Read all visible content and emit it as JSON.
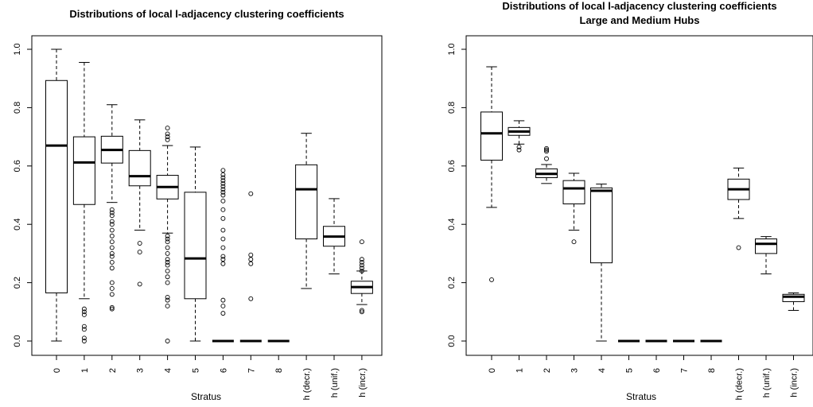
{
  "chart_data": [
    {
      "type": "boxplot",
      "title": "Distributions of local l-adjacency clustering coefficients",
      "subtitle": "",
      "xlabel": "Stratus",
      "ylabel": "",
      "ylim": [
        0,
        1
      ],
      "y_ticks": [
        "0.0",
        "0.2",
        "0.4",
        "0.6",
        "0.8",
        "1.0"
      ],
      "categories": [
        "0",
        "1",
        "2",
        "3",
        "4",
        "5",
        "6",
        "7",
        "8",
        "h (decr.)",
        "h (unif.)",
        "h (incr.)"
      ],
      "boxes": [
        {
          "whisker_low": 0.0,
          "q1": 0.165,
          "median": 0.67,
          "q3": 0.893,
          "whisker_high": 1.0,
          "outliers": []
        },
        {
          "whisker_low": 0.145,
          "q1": 0.468,
          "median": 0.612,
          "q3": 0.7,
          "whisker_high": 0.955,
          "outliers": [
            0.0,
            0.01,
            0.04,
            0.05,
            0.09,
            0.1,
            0.11
          ]
        },
        {
          "whisker_low": 0.475,
          "q1": 0.61,
          "median": 0.655,
          "q3": 0.702,
          "whisker_high": 0.81,
          "outliers": [
            0.11,
            0.115,
            0.16,
            0.18,
            0.2,
            0.25,
            0.27,
            0.29,
            0.3,
            0.32,
            0.34,
            0.36,
            0.38,
            0.4,
            0.41,
            0.43,
            0.44,
            0.45
          ]
        },
        {
          "whisker_low": 0.38,
          "q1": 0.532,
          "median": 0.565,
          "q3": 0.653,
          "whisker_high": 0.758,
          "outliers": [
            0.195,
            0.305,
            0.335
          ]
        },
        {
          "whisker_low": 0.37,
          "q1": 0.487,
          "median": 0.528,
          "q3": 0.568,
          "whisker_high": 0.67,
          "outliers": [
            0.0,
            0.12,
            0.14,
            0.15,
            0.2,
            0.22,
            0.24,
            0.26,
            0.27,
            0.28,
            0.3,
            0.32,
            0.34,
            0.35,
            0.36,
            0.69,
            0.7,
            0.71,
            0.73
          ]
        },
        {
          "whisker_low": 0.0,
          "q1": 0.145,
          "median": 0.283,
          "q3": 0.51,
          "whisker_high": 0.665,
          "outliers": []
        },
        {
          "whisker_low": 0.0,
          "q1": 0.0,
          "median": 0.0,
          "q3": 0.0,
          "whisker_high": 0.0,
          "outliers": [
            0.095,
            0.12,
            0.14,
            0.265,
            0.28,
            0.29,
            0.32,
            0.35,
            0.38,
            0.42,
            0.45,
            0.48,
            0.5,
            0.51,
            0.52,
            0.53,
            0.54,
            0.55,
            0.56,
            0.57,
            0.585
          ]
        },
        {
          "whisker_low": 0.0,
          "q1": 0.0,
          "median": 0.0,
          "q3": 0.0,
          "whisker_high": 0.0,
          "outliers": [
            0.145,
            0.265,
            0.28,
            0.295,
            0.505
          ]
        },
        {
          "whisker_low": 0.0,
          "q1": 0.0,
          "median": 0.0,
          "q3": 0.0,
          "whisker_high": 0.0,
          "outliers": []
        },
        {
          "whisker_low": 0.18,
          "q1": 0.35,
          "median": 0.52,
          "q3": 0.604,
          "whisker_high": 0.712,
          "outliers": []
        },
        {
          "whisker_low": 0.23,
          "q1": 0.325,
          "median": 0.358,
          "q3": 0.393,
          "whisker_high": 0.488,
          "outliers": []
        },
        {
          "whisker_low": 0.125,
          "q1": 0.163,
          "median": 0.185,
          "q3": 0.205,
          "whisker_high": 0.24,
          "outliers": [
            0.1,
            0.105,
            0.24,
            0.25,
            0.26,
            0.27,
            0.28,
            0.34
          ]
        }
      ]
    },
    {
      "type": "boxplot",
      "title": "Distributions of local l-adjacency clustering coefficients",
      "subtitle": "Large and Medium Hubs",
      "xlabel": "Stratus",
      "ylabel": "",
      "ylim": [
        0,
        1
      ],
      "y_ticks": [
        "0.0",
        "0.2",
        "0.4",
        "0.6",
        "0.8",
        "1.0"
      ],
      "categories": [
        "0",
        "1",
        "2",
        "3",
        "4",
        "5",
        "6",
        "7",
        "8",
        "h (decr.)",
        "h (unif.)",
        "h (incr.)"
      ],
      "boxes": [
        {
          "whisker_low": 0.458,
          "q1": 0.62,
          "median": 0.712,
          "q3": 0.785,
          "whisker_high": 0.94,
          "outliers": [
            0.21
          ]
        },
        {
          "whisker_low": 0.675,
          "q1": 0.705,
          "median": 0.718,
          "q3": 0.732,
          "whisker_high": 0.755,
          "outliers": [
            0.655,
            0.665
          ]
        },
        {
          "whisker_low": 0.54,
          "q1": 0.56,
          "median": 0.573,
          "q3": 0.59,
          "whisker_high": 0.605,
          "outliers": [
            0.625,
            0.65,
            0.655,
            0.66
          ]
        },
        {
          "whisker_low": 0.38,
          "q1": 0.47,
          "median": 0.523,
          "q3": 0.55,
          "whisker_high": 0.575,
          "outliers": [
            0.34
          ]
        },
        {
          "whisker_low": 0.0,
          "q1": 0.268,
          "median": 0.515,
          "q3": 0.525,
          "whisker_high": 0.538,
          "outliers": []
        },
        {
          "whisker_low": 0.0,
          "q1": 0.0,
          "median": 0.0,
          "q3": 0.0,
          "whisker_high": 0.0,
          "outliers": []
        },
        {
          "whisker_low": 0.0,
          "q1": 0.0,
          "median": 0.0,
          "q3": 0.0,
          "whisker_high": 0.0,
          "outliers": []
        },
        {
          "whisker_low": 0.0,
          "q1": 0.0,
          "median": 0.0,
          "q3": 0.0,
          "whisker_high": 0.0,
          "outliers": []
        },
        {
          "whisker_low": 0.0,
          "q1": 0.0,
          "median": 0.0,
          "q3": 0.0,
          "whisker_high": 0.0,
          "outliers": []
        },
        {
          "whisker_low": 0.42,
          "q1": 0.485,
          "median": 0.52,
          "q3": 0.555,
          "whisker_high": 0.593,
          "outliers": [
            0.32
          ]
        },
        {
          "whisker_low": 0.23,
          "q1": 0.3,
          "median": 0.333,
          "q3": 0.35,
          "whisker_high": 0.358,
          "outliers": []
        },
        {
          "whisker_low": 0.105,
          "q1": 0.135,
          "median": 0.152,
          "q3": 0.16,
          "whisker_high": 0.165,
          "outliers": []
        }
      ]
    }
  ]
}
